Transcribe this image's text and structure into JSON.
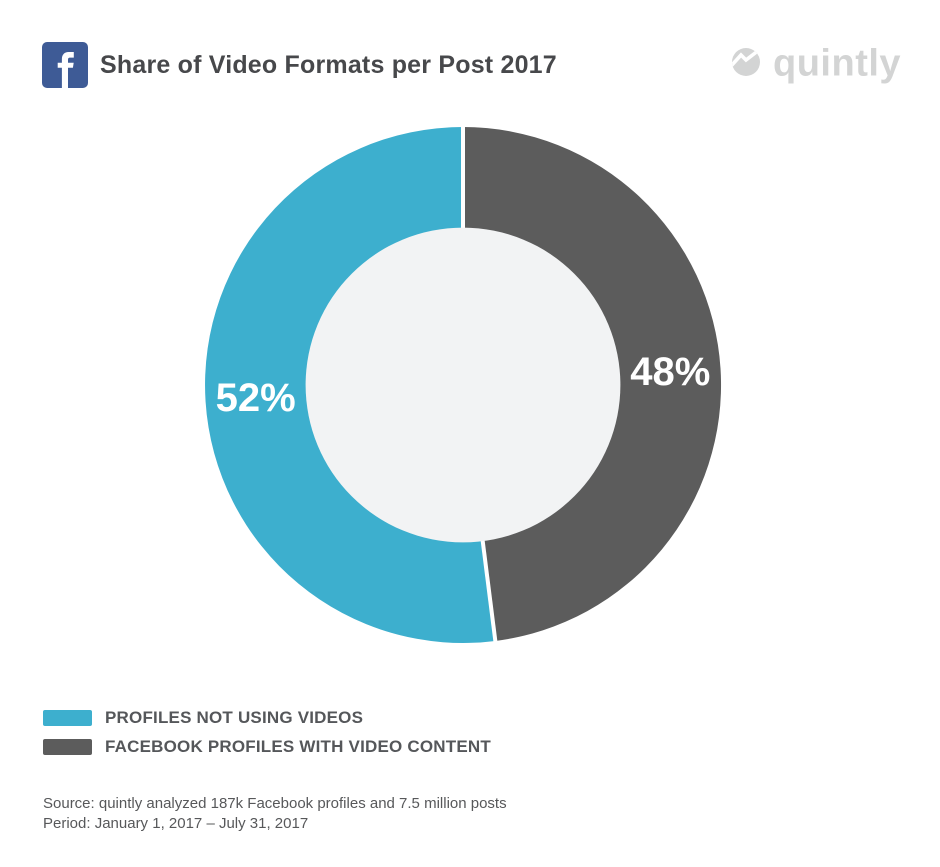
{
  "header": {
    "title": "Share of Video Formats per Post 2017",
    "facebook_icon_color": "#3e5b96",
    "brand": {
      "name": "quintly",
      "color": "#d3d4d4"
    }
  },
  "chart_data": {
    "type": "pie",
    "variant": "donut",
    "title": "Share of Video Formats per Post 2017",
    "slices": [
      {
        "label": "PROFILES NOT USING VIDEOS",
        "value": 52,
        "display": "52%",
        "color": "#3dafce"
      },
      {
        "label": "FACEBOOK PROFILES WITH VIDEO CONTENT",
        "value": 48,
        "display": "48%",
        "color": "#5c5c5c"
      }
    ],
    "start_angle": "top",
    "direction": "counterclockwise",
    "inner_radius_ratio": 0.61,
    "inner_circle_color": "#f2f3f4",
    "divider_color": "#ffffff",
    "slice_label_color": "#ffffff",
    "legend_position": "bottom-left"
  },
  "legend": {
    "items": [
      {
        "label": "PROFILES NOT USING VIDEOS",
        "color": "#3dafce"
      },
      {
        "label": "FACEBOOK PROFILES WITH VIDEO CONTENT",
        "color": "#5c5c5c"
      }
    ]
  },
  "footer": {
    "source_line": "Source: quintly analyzed 187k Facebook profiles and 7.5 million posts",
    "period_line": "Period: January 1, 2017 – July 31, 2017"
  }
}
